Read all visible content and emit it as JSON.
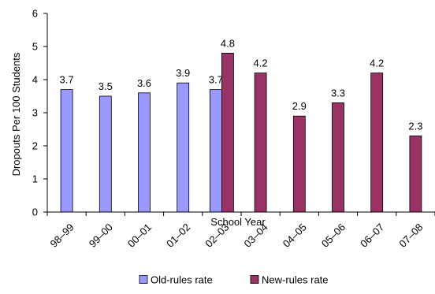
{
  "chart_data": {
    "type": "bar",
    "categories": [
      "98–99",
      "99–00",
      "00–01",
      "01–02",
      "02–03",
      "03–04",
      "04–05",
      "05–06",
      "06–07",
      "07–08"
    ],
    "series": [
      {
        "name": "Old-rules rate",
        "color": "#9999ff",
        "values": [
          3.7,
          3.5,
          3.6,
          3.9,
          3.7,
          null,
          null,
          null,
          null,
          null
        ]
      },
      {
        "name": "New-rules rate",
        "color": "#993366",
        "values": [
          null,
          null,
          null,
          null,
          4.8,
          4.2,
          2.9,
          3.3,
          4.2,
          2.3
        ]
      }
    ],
    "data_labels": [
      "3.7",
      "3.5",
      "3.6",
      "3.9",
      "3.7",
      "4.8",
      "4.2",
      "2.9",
      "3.3",
      "4.2",
      "2.3"
    ],
    "xlabel": "School Year",
    "ylabel": "Dropouts Per 100 Students",
    "ylim": [
      0,
      6
    ],
    "yticks": [
      0,
      1,
      2,
      3,
      4,
      5,
      6
    ],
    "grid": false,
    "legend_position": "bottom"
  }
}
